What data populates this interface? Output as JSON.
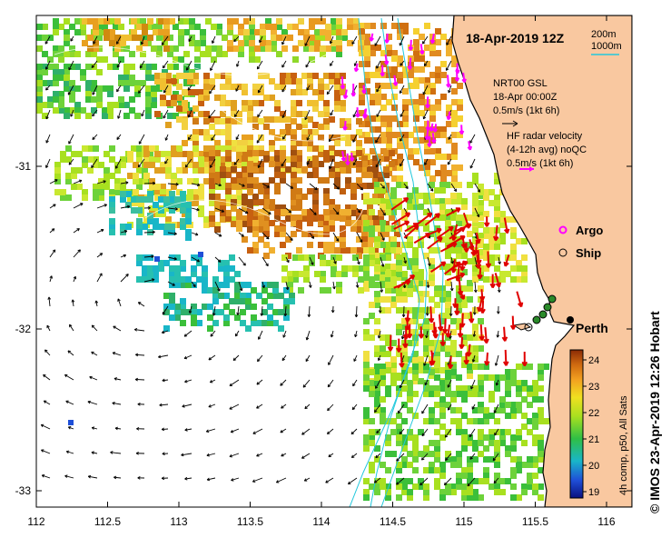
{
  "title": "18-Apr-2019 12Z",
  "depth_legend": {
    "c200": "200m",
    "c1000": "1000m"
  },
  "model_label": {
    "line1": "NRT00 GSL",
    "line2": "18-Apr 00:00Z",
    "line3": "0.5m/s (1kt 6h)"
  },
  "hf_label": {
    "line1": "HF radar velocity",
    "line2": "(4-12h avg) noQC",
    "line3": "0.5m/s (1kt 6h)"
  },
  "markers": {
    "argo": "Argo",
    "ship": "Ship",
    "city": "Perth"
  },
  "axes": {
    "x_ticks": [
      "112",
      "112.5",
      "113",
      "113.5",
      "114",
      "114.5",
      "115",
      "115.5",
      "116"
    ],
    "y_ticks": [
      "-31",
      "-32",
      "-33"
    ]
  },
  "colorbar": {
    "ticks": [
      "24",
      "23",
      "22",
      "21",
      "20",
      "19"
    ],
    "label": "4h comp, p50, All Sats"
  },
  "credit": "© IMOS 23-Apr-2019 12:26 Hobart",
  "colors": {
    "land": "#f9c8a0",
    "hf_arrows": "#e00000",
    "argo": "#ff00ff",
    "contours": "#22c8dc",
    "model_arrows": "#000000"
  }
}
